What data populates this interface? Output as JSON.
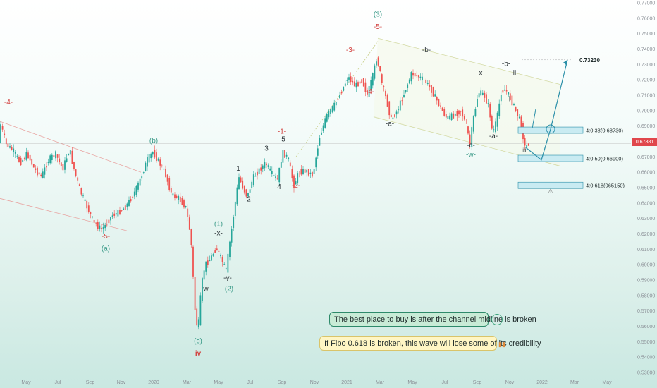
{
  "chart_data": {
    "type": "candlestick",
    "symbol_note": "",
    "y_axis_ticks": [
      "0.77000",
      "0.76000",
      "0.75000",
      "0.74000",
      "0.73000",
      "0.72000",
      "0.71000",
      "0.70000",
      "0.69000",
      "0.68000",
      "0.67000",
      "0.66000",
      "0.65000",
      "0.64000",
      "0.63000",
      "0.62000",
      "0.61000",
      "0.60000",
      "0.59000",
      "0.58000",
      "0.57000",
      "0.56000",
      "0.55000",
      "0.54000",
      "0.53000"
    ],
    "x_axis_ticks": [
      "May",
      "Jul",
      "Sep",
      "Nov",
      "2020",
      "Mar",
      "May",
      "Jul",
      "Sep",
      "Nov",
      "2021",
      "Mar",
      "May",
      "Jul",
      "Sep",
      "Nov",
      "2022",
      "Mar",
      "May"
    ],
    "ylim": [
      0.53,
      0.77
    ],
    "current_price": "0.67881",
    "price_path": [
      [
        0,
        0.695
      ],
      [
        10,
        0.678
      ],
      [
        20,
        0.674
      ],
      [
        30,
        0.666
      ],
      [
        40,
        0.672
      ],
      [
        50,
        0.662
      ],
      [
        60,
        0.657
      ],
      [
        70,
        0.668
      ],
      [
        80,
        0.672
      ],
      [
        90,
        0.662
      ],
      [
        100,
        0.675
      ],
      [
        105,
        0.664
      ],
      [
        115,
        0.648
      ],
      [
        125,
        0.637
      ],
      [
        135,
        0.627
      ],
      [
        145,
        0.623
      ],
      [
        150,
        0.625
      ],
      [
        160,
        0.632
      ],
      [
        170,
        0.634
      ],
      [
        180,
        0.638
      ],
      [
        190,
        0.645
      ],
      [
        200,
        0.655
      ],
      [
        210,
        0.668
      ],
      [
        218,
        0.673
      ],
      [
        225,
        0.668
      ],
      [
        235,
        0.66
      ],
      [
        245,
        0.645
      ],
      [
        255,
        0.643
      ],
      [
        265,
        0.637
      ],
      [
        272,
        0.618
      ],
      [
        278,
        0.57
      ],
      [
        282,
        0.556
      ],
      [
        287,
        0.586
      ],
      [
        292,
        0.6
      ],
      [
        300,
        0.604
      ],
      [
        308,
        0.611
      ],
      [
        315,
        0.604
      ],
      [
        322,
        0.596
      ],
      [
        328,
        0.617
      ],
      [
        335,
        0.64
      ],
      [
        340,
        0.657
      ],
      [
        345,
        0.651
      ],
      [
        352,
        0.644
      ],
      [
        360,
        0.656
      ],
      [
        368,
        0.661
      ],
      [
        378,
        0.666
      ],
      [
        388,
        0.658
      ],
      [
        395,
        0.655
      ],
      [
        402,
        0.673
      ],
      [
        410,
        0.669
      ],
      [
        418,
        0.651
      ],
      [
        425,
        0.66
      ],
      [
        435,
        0.661
      ],
      [
        445,
        0.658
      ],
      [
        455,
        0.684
      ],
      [
        465,
        0.697
      ],
      [
        475,
        0.703
      ],
      [
        485,
        0.712
      ],
      [
        495,
        0.722
      ],
      [
        505,
        0.716
      ],
      [
        515,
        0.72
      ],
      [
        522,
        0.71
      ],
      [
        530,
        0.722
      ],
      [
        536,
        0.735
      ],
      [
        543,
        0.718
      ],
      [
        550,
        0.706
      ],
      [
        556,
        0.694
      ],
      [
        565,
        0.7
      ],
      [
        575,
        0.712
      ],
      [
        585,
        0.724
      ],
      [
        595,
        0.722
      ],
      [
        605,
        0.719
      ],
      [
        615,
        0.712
      ],
      [
        625,
        0.703
      ],
      [
        635,
        0.695
      ],
      [
        645,
        0.697
      ],
      [
        655,
        0.7
      ],
      [
        663,
        0.69
      ],
      [
        668,
        0.678
      ],
      [
        672,
        0.693
      ],
      [
        680,
        0.712
      ],
      [
        688,
        0.71
      ],
      [
        695,
        0.702
      ],
      [
        700,
        0.685
      ],
      [
        706,
        0.694
      ],
      [
        712,
        0.712
      ],
      [
        718,
        0.714
      ],
      [
        725,
        0.708
      ],
      [
        732,
        0.701
      ],
      [
        740,
        0.692
      ],
      [
        746,
        0.676
      ],
      [
        752,
        0.679
      ]
    ],
    "wave_labels": [
      {
        "text": "-4-",
        "x": 12,
        "y": 0.704,
        "color": "#d2403e"
      },
      {
        "text": "-5-",
        "x": 150,
        "y": 0.617,
        "color": "#d2403e"
      },
      {
        "text": "(a)",
        "x": 150,
        "y": 0.609,
        "color": "#3a9a88"
      },
      {
        "text": "(b)",
        "x": 218,
        "y": 0.679,
        "color": "#3a9a88"
      },
      {
        "text": "(c)",
        "x": 281,
        "y": 0.549,
        "color": "#3a9a88"
      },
      {
        "text": "iv",
        "x": 281,
        "y": 0.541,
        "color": "#d2403e"
      },
      {
        "text": "-w-",
        "x": 292,
        "y": 0.583,
        "color": "#2c3438"
      },
      {
        "text": "(1)",
        "x": 310,
        "y": 0.625,
        "color": "#3a9a88"
      },
      {
        "text": "-x-",
        "x": 310,
        "y": 0.619,
        "color": "#2c3438"
      },
      {
        "text": "-y-",
        "x": 323,
        "y": 0.59,
        "color": "#2c3438"
      },
      {
        "text": "(2)",
        "x": 325,
        "y": 0.583,
        "color": "#3a9a88"
      },
      {
        "text": "1",
        "x": 338,
        "y": 0.661,
        "color": "#2c3438"
      },
      {
        "text": "2",
        "x": 353,
        "y": 0.641,
        "color": "#2c3438"
      },
      {
        "text": "3",
        "x": 378,
        "y": 0.674,
        "color": "#2c3438"
      },
      {
        "text": "4",
        "x": 396,
        "y": 0.649,
        "color": "#2c3438"
      },
      {
        "text": "5",
        "x": 402,
        "y": 0.68,
        "color": "#2c3438"
      },
      {
        "text": "-1-",
        "x": 400,
        "y": 0.685,
        "color": "#d2403e"
      },
      {
        "text": "-2-",
        "x": 420,
        "y": 0.65,
        "color": "#d2403e"
      },
      {
        "text": "-3-",
        "x": 497,
        "y": 0.738,
        "color": "#d2403e"
      },
      {
        "text": "-4-",
        "x": 525,
        "y": 0.711,
        "color": "#d2403e"
      },
      {
        "text": "(3)",
        "x": 536,
        "y": 0.761,
        "color": "#3a9a88"
      },
      {
        "text": "-5-",
        "x": 536,
        "y": 0.753,
        "color": "#d2403e"
      },
      {
        "text": "-a-",
        "x": 553,
        "y": 0.69,
        "color": "#2c3438"
      },
      {
        "text": "-b-",
        "x": 605,
        "y": 0.738,
        "color": "#2c3438"
      },
      {
        "text": "-x-",
        "x": 682,
        "y": 0.723,
        "color": "#2c3438"
      },
      {
        "text": "-a-",
        "x": 700,
        "y": 0.682,
        "color": "#2c3438"
      },
      {
        "text": "-c-",
        "x": 668,
        "y": 0.676,
        "color": "#2c3438"
      },
      {
        "text": "-w-",
        "x": 668,
        "y": 0.67,
        "color": "#3a9a88"
      },
      {
        "text": "-b-",
        "x": 718,
        "y": 0.729,
        "color": "#2c3438"
      },
      {
        "text": "ii",
        "x": 730,
        "y": 0.723,
        "color": "#2c3438"
      },
      {
        "text": "i",
        "x": 723,
        "y": 0.706,
        "color": "#2c3438"
      },
      {
        "text": "iii",
        "x": 743,
        "y": 0.673,
        "color": "#2c3438"
      }
    ],
    "fib_levels": [
      {
        "label": "4:0.38(0.68730)",
        "price": 0.6873
      },
      {
        "label": "4:0.50(0.66900)",
        "price": 0.669
      },
      {
        "label": "4:0.618(065150)",
        "price": 0.6515
      }
    ],
    "target_label": "0.73230",
    "projection_path": [
      [
        746,
        0.676
      ],
      [
        768,
        0.668
      ],
      [
        781,
        0.688
      ],
      [
        805,
        0.733
      ]
    ],
    "annotations": {
      "buy_note": "The best place to buy is after the channel midline is broken",
      "fibo_note": "If Fibo 0.618 is broken, this wave will lose some of its credibility"
    },
    "colors": {
      "up": "#26a69a",
      "down": "#ef5350",
      "label_red": "#d2403e",
      "label_teal": "#3a9a88",
      "fib_fill": "#c9ebf2",
      "fib_border": "#2a8fa8",
      "projection": "#2a8fa8",
      "price_line": "#b0b0b0",
      "price_badge": "#e0474c"
    }
  }
}
